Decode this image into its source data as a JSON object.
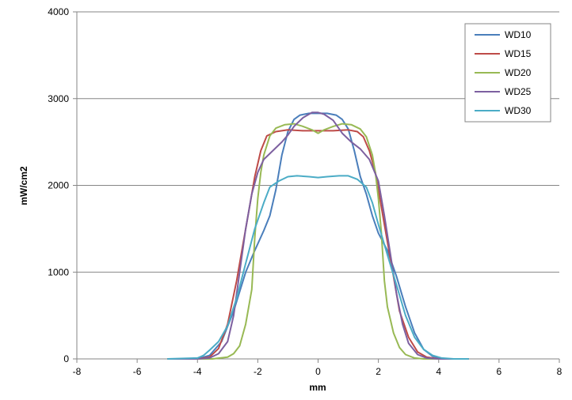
{
  "chart_data": {
    "type": "line",
    "xlabel": "mm",
    "ylabel": "mW/cm2",
    "xlim": [
      -8,
      8
    ],
    "ylim": [
      0,
      4000
    ],
    "x_ticks": [
      -8,
      -6,
      -4,
      -2,
      0,
      2,
      4,
      6,
      8
    ],
    "y_ticks": [
      0,
      1000,
      2000,
      3000,
      4000
    ],
    "grid": "horizontal",
    "legend_position": "top-right",
    "series": [
      {
        "name": "WD10",
        "color": "#4A7EBB",
        "points": [
          [
            -5,
            0
          ],
          [
            -4,
            0
          ],
          [
            -3.6,
            40
          ],
          [
            -3.2,
            200
          ],
          [
            -2.8,
            550
          ],
          [
            -2.4,
            1000
          ],
          [
            -2.1,
            1250
          ],
          [
            -1.8,
            1480
          ],
          [
            -1.6,
            1650
          ],
          [
            -1.4,
            1950
          ],
          [
            -1.2,
            2350
          ],
          [
            -1,
            2620
          ],
          [
            -0.8,
            2760
          ],
          [
            -0.6,
            2810
          ],
          [
            -0.3,
            2830
          ],
          [
            0,
            2830
          ],
          [
            0.3,
            2830
          ],
          [
            0.6,
            2810
          ],
          [
            0.8,
            2760
          ],
          [
            1,
            2650
          ],
          [
            1.2,
            2400
          ],
          [
            1.4,
            2100
          ],
          [
            1.6,
            1900
          ],
          [
            1.8,
            1650
          ],
          [
            2,
            1450
          ],
          [
            2.3,
            1250
          ],
          [
            2.6,
            950
          ],
          [
            2.9,
            600
          ],
          [
            3.2,
            300
          ],
          [
            3.5,
            110
          ],
          [
            3.8,
            30
          ],
          [
            4.2,
            0
          ],
          [
            5,
            0
          ]
        ]
      },
      {
        "name": "WD15",
        "color": "#BE4B48",
        "points": [
          [
            -5,
            0
          ],
          [
            -4,
            0
          ],
          [
            -3.6,
            20
          ],
          [
            -3.3,
            120
          ],
          [
            -3,
            400
          ],
          [
            -2.7,
            900
          ],
          [
            -2.5,
            1300
          ],
          [
            -2.3,
            1700
          ],
          [
            -2.1,
            2100
          ],
          [
            -1.9,
            2400
          ],
          [
            -1.7,
            2570
          ],
          [
            -1.4,
            2620
          ],
          [
            -1,
            2640
          ],
          [
            -0.5,
            2630
          ],
          [
            0,
            2630
          ],
          [
            0.5,
            2630
          ],
          [
            1,
            2640
          ],
          [
            1.3,
            2620
          ],
          [
            1.5,
            2560
          ],
          [
            1.7,
            2400
          ],
          [
            1.9,
            2150
          ],
          [
            2.1,
            1750
          ],
          [
            2.3,
            1350
          ],
          [
            2.5,
            950
          ],
          [
            2.7,
            550
          ],
          [
            3,
            250
          ],
          [
            3.3,
            80
          ],
          [
            3.6,
            20
          ],
          [
            4,
            0
          ],
          [
            5,
            0
          ]
        ]
      },
      {
        "name": "WD20",
        "color": "#98B954",
        "points": [
          [
            -5,
            0
          ],
          [
            -4,
            0
          ],
          [
            -3.5,
            0
          ],
          [
            -3,
            20
          ],
          [
            -2.8,
            60
          ],
          [
            -2.6,
            150
          ],
          [
            -2.4,
            400
          ],
          [
            -2.2,
            800
          ],
          [
            -2.1,
            1400
          ],
          [
            -2,
            1850
          ],
          [
            -1.9,
            2150
          ],
          [
            -1.8,
            2350
          ],
          [
            -1.6,
            2570
          ],
          [
            -1.4,
            2660
          ],
          [
            -1.1,
            2700
          ],
          [
            -0.8,
            2710
          ],
          [
            -0.5,
            2680
          ],
          [
            -0.2,
            2640
          ],
          [
            0,
            2600
          ],
          [
            0.2,
            2640
          ],
          [
            0.5,
            2680
          ],
          [
            0.8,
            2710
          ],
          [
            1.1,
            2700
          ],
          [
            1.4,
            2650
          ],
          [
            1.6,
            2560
          ],
          [
            1.8,
            2350
          ],
          [
            1.9,
            2150
          ],
          [
            2,
            1850
          ],
          [
            2.1,
            1450
          ],
          [
            2.2,
            900
          ],
          [
            2.3,
            600
          ],
          [
            2.5,
            300
          ],
          [
            2.7,
            130
          ],
          [
            2.9,
            50
          ],
          [
            3.2,
            10
          ],
          [
            3.5,
            0
          ],
          [
            5,
            0
          ]
        ]
      },
      {
        "name": "WD25",
        "color": "#7D60A0",
        "points": [
          [
            -5,
            0
          ],
          [
            -4,
            0
          ],
          [
            -3.6,
            10
          ],
          [
            -3.3,
            60
          ],
          [
            -3,
            200
          ],
          [
            -2.8,
            500
          ],
          [
            -2.6,
            1000
          ],
          [
            -2.4,
            1500
          ],
          [
            -2.2,
            1900
          ],
          [
            -2,
            2150
          ],
          [
            -1.8,
            2300
          ],
          [
            -1.5,
            2400
          ],
          [
            -1.2,
            2500
          ],
          [
            -1,
            2580
          ],
          [
            -0.8,
            2680
          ],
          [
            -0.5,
            2780
          ],
          [
            -0.2,
            2840
          ],
          [
            0,
            2840
          ],
          [
            0.2,
            2820
          ],
          [
            0.5,
            2750
          ],
          [
            0.8,
            2600
          ],
          [
            1.1,
            2500
          ],
          [
            1.4,
            2420
          ],
          [
            1.7,
            2300
          ],
          [
            2,
            2050
          ],
          [
            2.2,
            1650
          ],
          [
            2.4,
            1200
          ],
          [
            2.6,
            750
          ],
          [
            2.8,
            400
          ],
          [
            3,
            180
          ],
          [
            3.3,
            50
          ],
          [
            3.6,
            10
          ],
          [
            4,
            0
          ],
          [
            5,
            0
          ]
        ]
      },
      {
        "name": "WD30",
        "color": "#4BACC6",
        "points": [
          [
            -5,
            0
          ],
          [
            -4,
            10
          ],
          [
            -3.8,
            40
          ],
          [
            -3.6,
            100
          ],
          [
            -3.3,
            200
          ],
          [
            -3,
            380
          ],
          [
            -2.7,
            700
          ],
          [
            -2.4,
            1100
          ],
          [
            -2.1,
            1500
          ],
          [
            -1.8,
            1800
          ],
          [
            -1.6,
            1980
          ],
          [
            -1.3,
            2050
          ],
          [
            -1,
            2100
          ],
          [
            -0.7,
            2110
          ],
          [
            -0.3,
            2100
          ],
          [
            0,
            2090
          ],
          [
            0.3,
            2100
          ],
          [
            0.7,
            2110
          ],
          [
            1,
            2110
          ],
          [
            1.3,
            2070
          ],
          [
            1.6,
            1980
          ],
          [
            1.8,
            1800
          ],
          [
            2,
            1550
          ],
          [
            2.3,
            1200
          ],
          [
            2.6,
            850
          ],
          [
            2.9,
            500
          ],
          [
            3.2,
            250
          ],
          [
            3.5,
            110
          ],
          [
            3.8,
            40
          ],
          [
            4.1,
            10
          ],
          [
            4.5,
            0
          ],
          [
            5,
            0
          ]
        ]
      }
    ]
  }
}
